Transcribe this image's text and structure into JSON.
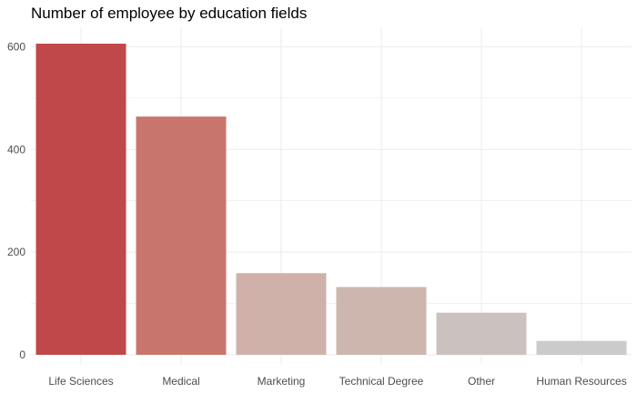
{
  "chart_data": {
    "type": "bar",
    "title": "Number of employee by education fields",
    "xlabel": "",
    "ylabel": "",
    "categories": [
      "Life Sciences",
      "Medical",
      "Marketing",
      "Technical Degree",
      "Other",
      "Human Resources"
    ],
    "values": [
      606,
      464,
      159,
      132,
      82,
      27
    ],
    "colors": [
      "#c0484a",
      "#c8756d",
      "#d0b1aa",
      "#cdb6ae",
      "#cbc2bf",
      "#cbcbcb"
    ],
    "ylim": [
      0,
      625
    ],
    "yticks": [
      0,
      200,
      400,
      600
    ],
    "grid": true,
    "legend": "none"
  }
}
